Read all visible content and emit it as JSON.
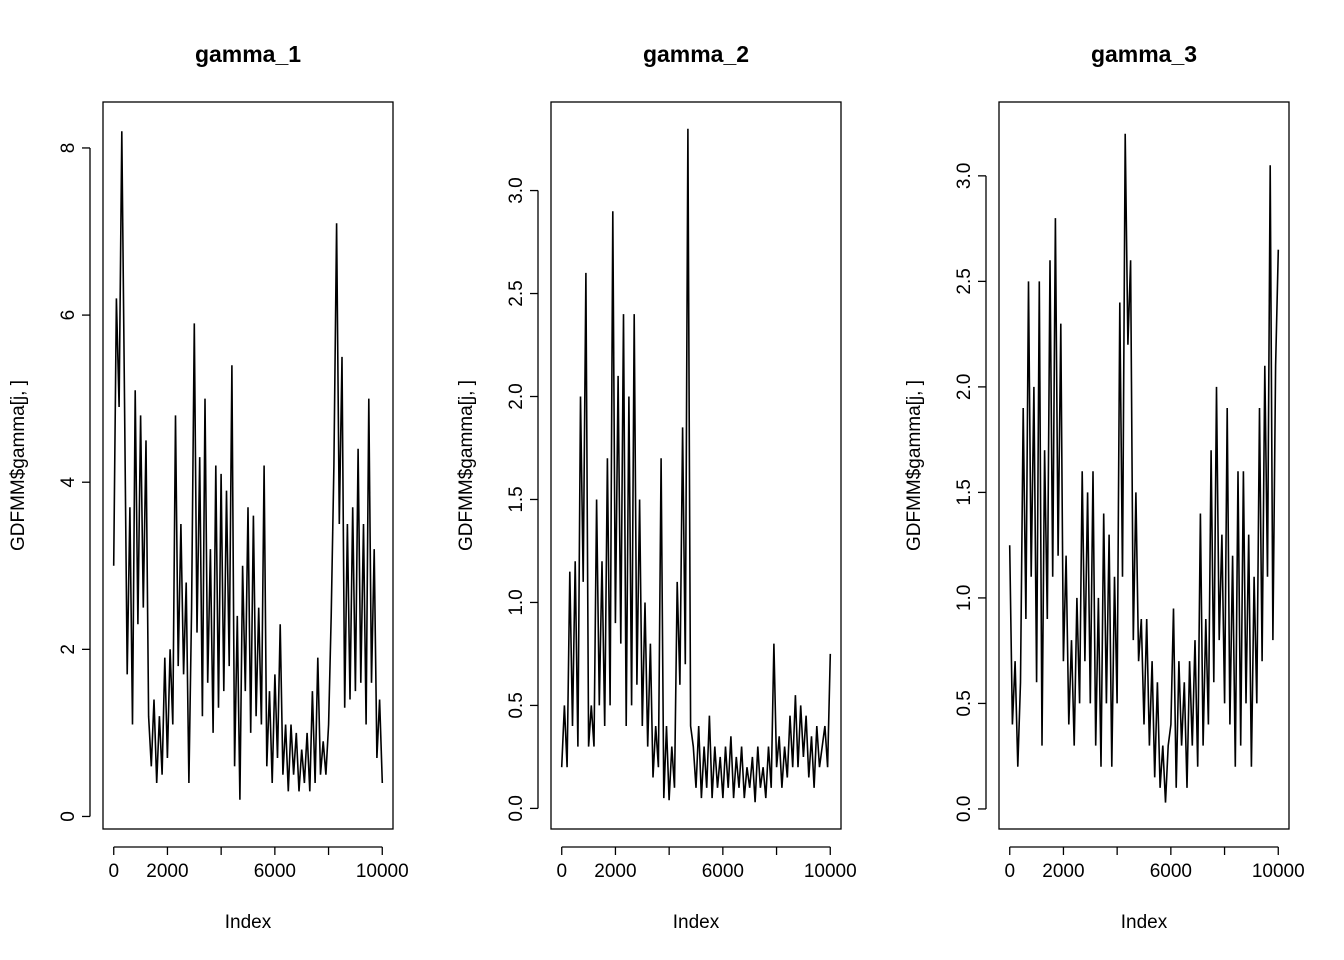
{
  "chart_data": [
    {
      "type": "line",
      "title": "gamma_1",
      "xlabel": "Index",
      "ylabel": "GDFMM$gamma[j, ]",
      "color": "#000000",
      "xlim": [
        -400,
        10400
      ],
      "ylim": [
        -0.15,
        8.55
      ],
      "xticks": [
        0,
        2000,
        {
          "value": 4000,
          "label": null
        },
        6000,
        {
          "value": 8000,
          "label": null
        },
        10000
      ],
      "yticks": [
        0,
        2,
        4,
        6,
        8
      ],
      "x": [
        0,
        100,
        200,
        300,
        400,
        500,
        600,
        700,
        800,
        900,
        1000,
        1100,
        1200,
        1300,
        1400,
        1500,
        1600,
        1700,
        1800,
        1900,
        2000,
        2100,
        2200,
        2300,
        2400,
        2500,
        2600,
        2700,
        2800,
        2900,
        3000,
        3100,
        3200,
        3300,
        3400,
        3500,
        3600,
        3700,
        3800,
        3900,
        4000,
        4100,
        4200,
        4300,
        4400,
        4500,
        4600,
        4700,
        4800,
        4900,
        5000,
        5100,
        5200,
        5300,
        5400,
        5500,
        5600,
        5700,
        5800,
        5900,
        6000,
        6100,
        6200,
        6300,
        6400,
        6500,
        6600,
        6700,
        6800,
        6900,
        7000,
        7100,
        7200,
        7300,
        7400,
        7500,
        7600,
        7700,
        7800,
        7900,
        8000,
        8100,
        8200,
        8300,
        8400,
        8500,
        8600,
        8700,
        8800,
        8900,
        9000,
        9100,
        9200,
        9300,
        9400,
        9500,
        9600,
        9700,
        9800,
        9900,
        10000
      ],
      "values": [
        3.0,
        6.2,
        4.9,
        8.2,
        5.0,
        1.7,
        3.7,
        1.1,
        5.1,
        2.3,
        4.8,
        2.5,
        4.5,
        1.2,
        0.6,
        1.4,
        0.4,
        1.2,
        0.5,
        1.9,
        0.7,
        2.0,
        1.1,
        4.8,
        1.8,
        3.5,
        1.7,
        2.8,
        0.4,
        2.5,
        5.9,
        2.2,
        4.3,
        1.2,
        5.0,
        1.6,
        3.2,
        1.0,
        4.2,
        1.3,
        4.1,
        1.5,
        3.9,
        1.8,
        5.4,
        0.6,
        2.4,
        0.2,
        3.0,
        1.5,
        3.7,
        1.0,
        3.6,
        1.2,
        2.5,
        1.1,
        4.2,
        0.6,
        1.5,
        0.4,
        1.7,
        0.7,
        2.3,
        0.5,
        1.1,
        0.3,
        1.1,
        0.5,
        1.0,
        0.3,
        0.8,
        0.4,
        1.0,
        0.3,
        1.5,
        0.4,
        1.9,
        0.5,
        0.9,
        0.5,
        1.1,
        2.4,
        4.2,
        7.1,
        3.5,
        5.5,
        1.3,
        3.5,
        1.4,
        3.7,
        1.5,
        4.4,
        1.6,
        3.5,
        1.1,
        5.0,
        1.6,
        3.2,
        0.7,
        1.4,
        0.4
      ]
    },
    {
      "type": "line",
      "title": "gamma_2",
      "xlabel": "Index",
      "ylabel": "GDFMM$gamma[j, ]",
      "color": "#000000",
      "xlim": [
        -400,
        10400
      ],
      "ylim": [
        -0.1,
        3.43
      ],
      "xticks": [
        0,
        2000,
        {
          "value": 4000,
          "label": null
        },
        6000,
        {
          "value": 8000,
          "label": null
        },
        10000
      ],
      "yticks": [
        {
          "value": 0,
          "label": "0.0"
        },
        0.5,
        {
          "value": 1,
          "label": "1.0"
        },
        1.5,
        {
          "value": 2,
          "label": "2.0"
        },
        2.5,
        {
          "value": 3,
          "label": "3.0"
        }
      ],
      "x": [
        0,
        100,
        200,
        300,
        400,
        500,
        600,
        700,
        800,
        900,
        1000,
        1100,
        1200,
        1300,
        1400,
        1500,
        1600,
        1700,
        1800,
        1900,
        2000,
        2100,
        2200,
        2300,
        2400,
        2500,
        2600,
        2700,
        2800,
        2900,
        3000,
        3100,
        3200,
        3300,
        3400,
        3500,
        3600,
        3700,
        3800,
        3900,
        4000,
        4100,
        4200,
        4300,
        4400,
        4500,
        4600,
        4700,
        4800,
        4900,
        5000,
        5100,
        5200,
        5300,
        5400,
        5500,
        5600,
        5700,
        5800,
        5900,
        6000,
        6100,
        6200,
        6300,
        6400,
        6500,
        6600,
        6700,
        6800,
        6900,
        7000,
        7100,
        7200,
        7300,
        7400,
        7500,
        7600,
        7700,
        7800,
        7900,
        8000,
        8100,
        8200,
        8300,
        8400,
        8500,
        8600,
        8700,
        8800,
        8900,
        9000,
        9100,
        9200,
        9300,
        9400,
        9500,
        9600,
        9700,
        9800,
        9900,
        10000
      ],
      "values": [
        0.2,
        0.5,
        0.2,
        1.15,
        0.4,
        1.2,
        0.3,
        2.0,
        1.1,
        2.6,
        0.3,
        0.5,
        0.3,
        1.5,
        0.5,
        1.2,
        0.4,
        1.7,
        0.5,
        2.9,
        0.9,
        2.1,
        0.8,
        2.4,
        0.4,
        2.0,
        0.5,
        2.4,
        0.6,
        1.5,
        0.4,
        1.0,
        0.3,
        0.8,
        0.15,
        0.4,
        0.2,
        1.7,
        0.05,
        0.4,
        0.04,
        0.3,
        0.1,
        1.1,
        0.6,
        1.85,
        0.7,
        3.3,
        0.4,
        0.3,
        0.1,
        0.4,
        0.05,
        0.3,
        0.1,
        0.45,
        0.05,
        0.3,
        0.1,
        0.25,
        0.05,
        0.3,
        0.1,
        0.35,
        0.05,
        0.25,
        0.1,
        0.3,
        0.05,
        0.2,
        0.1,
        0.25,
        0.03,
        0.3,
        0.1,
        0.2,
        0.05,
        0.3,
        0.1,
        0.8,
        0.2,
        0.35,
        0.1,
        0.3,
        0.15,
        0.45,
        0.2,
        0.55,
        0.2,
        0.5,
        0.25,
        0.45,
        0.15,
        0.35,
        0.1,
        0.4,
        0.2,
        0.3,
        0.4,
        0.2,
        0.75
      ]
    },
    {
      "type": "line",
      "title": "gamma_3",
      "xlabel": "Index",
      "ylabel": "GDFMM$gamma[j, ]",
      "color": "#000000",
      "xlim": [
        -400,
        10400
      ],
      "ylim": [
        -0.095,
        3.35
      ],
      "xticks": [
        0,
        2000,
        {
          "value": 4000,
          "label": null
        },
        6000,
        {
          "value": 8000,
          "label": null
        },
        10000
      ],
      "yticks": [
        {
          "value": 0,
          "label": "0.0"
        },
        0.5,
        {
          "value": 1,
          "label": "1.0"
        },
        1.5,
        {
          "value": 2,
          "label": "2.0"
        },
        2.5,
        {
          "value": 3,
          "label": "3.0"
        }
      ],
      "x": [
        0,
        100,
        200,
        300,
        400,
        500,
        600,
        700,
        800,
        900,
        1000,
        1100,
        1200,
        1300,
        1400,
        1500,
        1600,
        1700,
        1800,
        1900,
        2000,
        2100,
        2200,
        2300,
        2400,
        2500,
        2600,
        2700,
        2800,
        2900,
        3000,
        3100,
        3200,
        3300,
        3400,
        3500,
        3600,
        3700,
        3800,
        3900,
        4000,
        4100,
        4200,
        4300,
        4400,
        4500,
        4600,
        4700,
        4800,
        4900,
        5000,
        5100,
        5200,
        5300,
        5400,
        5500,
        5600,
        5700,
        5800,
        5900,
        6000,
        6100,
        6200,
        6300,
        6400,
        6500,
        6600,
        6700,
        6800,
        6900,
        7000,
        7100,
        7200,
        7300,
        7400,
        7500,
        7600,
        7700,
        7800,
        7900,
        8000,
        8100,
        8200,
        8300,
        8400,
        8500,
        8600,
        8700,
        8800,
        8900,
        9000,
        9100,
        9200,
        9300,
        9400,
        9500,
        9600,
        9700,
        9800,
        9900,
        10000
      ],
      "values": [
        1.25,
        0.4,
        0.7,
        0.2,
        0.6,
        1.9,
        0.9,
        2.5,
        1.1,
        2.0,
        0.6,
        2.5,
        0.3,
        1.7,
        0.9,
        2.6,
        1.1,
        2.8,
        1.2,
        2.3,
        0.7,
        1.2,
        0.4,
        0.8,
        0.3,
        1.0,
        0.5,
        1.6,
        0.7,
        1.5,
        0.5,
        1.6,
        0.3,
        1.0,
        0.2,
        1.4,
        0.5,
        1.3,
        0.2,
        1.1,
        0.5,
        2.4,
        1.1,
        3.2,
        2.2,
        2.6,
        0.8,
        1.5,
        0.7,
        0.9,
        0.4,
        0.9,
        0.3,
        0.7,
        0.15,
        0.6,
        0.1,
        0.3,
        0.03,
        0.3,
        0.4,
        0.95,
        0.1,
        0.7,
        0.3,
        0.6,
        0.1,
        0.7,
        0.3,
        0.8,
        0.2,
        1.4,
        0.3,
        0.9,
        0.4,
        1.7,
        0.6,
        2.0,
        0.8,
        1.3,
        0.5,
        1.9,
        0.4,
        1.2,
        0.2,
        1.6,
        0.3,
        1.6,
        0.5,
        1.3,
        0.2,
        1.1,
        0.5,
        1.9,
        0.7,
        2.1,
        1.1,
        3.05,
        0.8,
        2.1,
        2.65
      ]
    }
  ]
}
